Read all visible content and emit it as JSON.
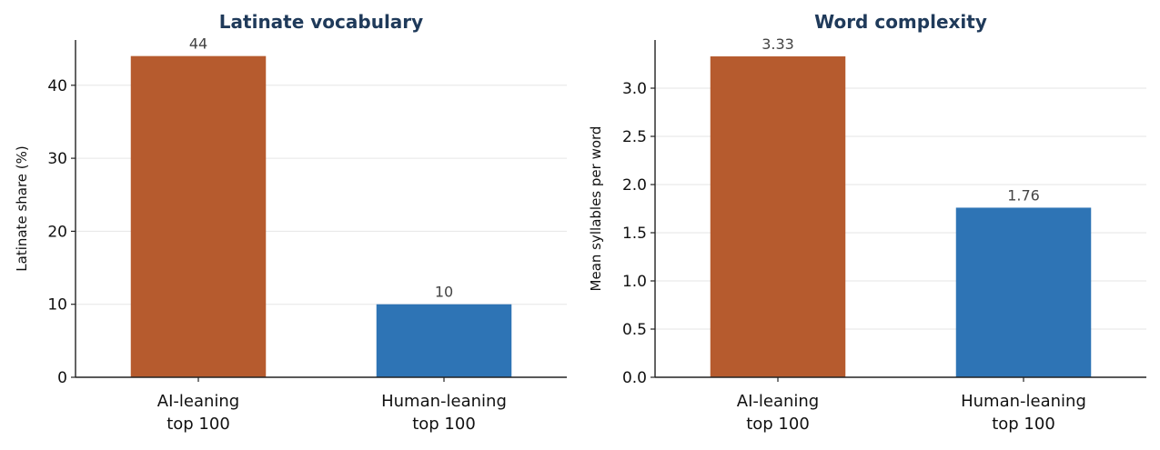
{
  "chart_data": [
    {
      "type": "bar",
      "title": "Latinate vocabulary",
      "ylabel": "Latinate share (%)",
      "xlabel": "",
      "categories": [
        [
          "AI-leaning",
          "top 100"
        ],
        [
          "Human-leaning",
          "top 100"
        ]
      ],
      "values": [
        44,
        10
      ],
      "value_labels": [
        "44",
        "10"
      ],
      "colors": [
        "#b65b2e",
        "#2e74b5"
      ],
      "ylim": [
        0,
        46.2
      ],
      "yticks": [
        0,
        10,
        20,
        30,
        40
      ],
      "ytick_labels": [
        "0",
        "10",
        "20",
        "30",
        "40"
      ],
      "grid": "horizontal",
      "legend": "none"
    },
    {
      "type": "bar",
      "title": "Word complexity",
      "ylabel": "Mean syllables per word",
      "xlabel": "",
      "categories": [
        [
          "AI-leaning",
          "top 100"
        ],
        [
          "Human-leaning",
          "top 100"
        ]
      ],
      "values": [
        3.33,
        1.76
      ],
      "value_labels": [
        "3.33",
        "1.76"
      ],
      "colors": [
        "#b65b2e",
        "#2e74b5"
      ],
      "ylim": [
        0,
        3.5
      ],
      "yticks": [
        0,
        0.5,
        1.0,
        1.5,
        2.0,
        2.5,
        3.0
      ],
      "ytick_labels": [
        "0.0",
        "0.5",
        "1.0",
        "1.5",
        "2.0",
        "2.5",
        "3.0"
      ],
      "grid": "horizontal",
      "legend": "none"
    }
  ]
}
